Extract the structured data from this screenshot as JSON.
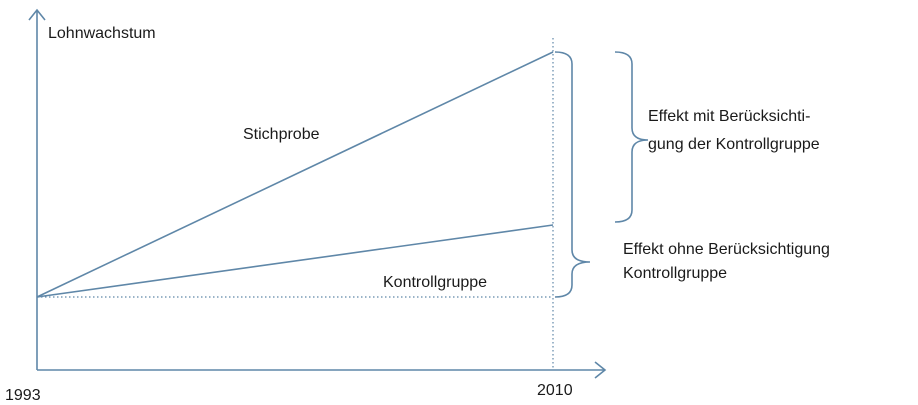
{
  "axis": {
    "y_label": "Lohnwachstum",
    "x_start": "1993",
    "x_end": "2010"
  },
  "lines": [
    {
      "label": "Stichprobe"
    },
    {
      "label": "Kontrollgruppe"
    }
  ],
  "effects": [
    {
      "lines": [
        "Effekt mit Berücksichti-",
        "gung der Kontrollgruppe"
      ]
    },
    {
      "lines": [
        "Effekt ohne Berücksichtigung",
        "Kontrollgruppe"
      ]
    }
  ]
}
